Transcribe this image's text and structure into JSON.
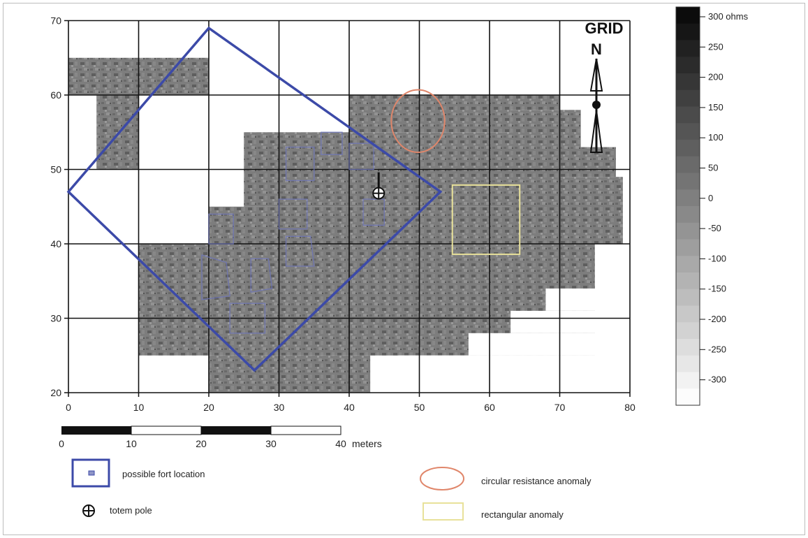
{
  "map": {
    "x_axis": {
      "ticks": [
        0,
        10,
        20,
        30,
        40,
        50,
        60,
        70,
        80
      ],
      "range": [
        0,
        80
      ]
    },
    "y_axis": {
      "ticks": [
        20,
        30,
        40,
        50,
        60,
        70
      ],
      "range": [
        20,
        70
      ]
    },
    "grid": true,
    "survey_blocks_m": [
      [
        0,
        60,
        20,
        65
      ],
      [
        4,
        50,
        10,
        60
      ],
      [
        25,
        45,
        70,
        55
      ],
      [
        40,
        55,
        63,
        60
      ],
      [
        20,
        40,
        70,
        45
      ],
      [
        10,
        25,
        75,
        40
      ],
      [
        20,
        20,
        43,
        25
      ]
    ],
    "fort_polygon_m": [
      [
        20,
        69
      ],
      [
        53,
        47
      ],
      [
        26.5,
        23
      ],
      [
        0,
        47
      ]
    ],
    "inner_structures_m": [
      [
        [
          26,
          38
        ],
        [
          28.5,
          38
        ],
        [
          29,
          34
        ],
        [
          26,
          33.5
        ]
      ],
      [
        [
          19,
          38.5
        ],
        [
          22.5,
          37.5
        ],
        [
          23,
          33
        ],
        [
          19,
          32.5
        ]
      ],
      [
        [
          23,
          32
        ],
        [
          28,
          32
        ],
        [
          28,
          28
        ],
        [
          23,
          28
        ]
      ],
      [
        [
          31,
          41
        ],
        [
          34.5,
          41
        ],
        [
          35,
          37
        ],
        [
          31,
          37
        ]
      ],
      [
        [
          30,
          46
        ],
        [
          34,
          46
        ],
        [
          34,
          42
        ],
        [
          30,
          42
        ]
      ],
      [
        [
          31,
          53
        ],
        [
          35,
          53
        ],
        [
          35,
          48.5
        ],
        [
          31,
          48.5
        ]
      ],
      [
        [
          36,
          55
        ],
        [
          39,
          55
        ],
        [
          39,
          52
        ],
        [
          36,
          52
        ]
      ],
      [
        [
          40,
          53.5
        ],
        [
          43.5,
          53.5
        ],
        [
          43.5,
          50
        ],
        [
          40,
          50
        ]
      ],
      [
        [
          20,
          44
        ],
        [
          23.5,
          44
        ],
        [
          23.5,
          40
        ],
        [
          20,
          40
        ]
      ],
      [
        [
          42,
          46
        ],
        [
          45,
          46
        ],
        [
          45,
          42.5
        ],
        [
          42,
          42.5
        ]
      ]
    ],
    "totem_pole_m": [
      44.2,
      46.8
    ],
    "circular_anomaly_m": {
      "cx": 49.8,
      "cy": 56.5,
      "rx": 3.8,
      "ry": 4.2
    },
    "rectangular_anomaly_m": [
      54.7,
      38.6,
      64.3,
      47.9
    ],
    "north_arrow": {
      "line1": "GRID",
      "line2": "N"
    },
    "colors": {
      "fort_outline": "#3c4aa8",
      "circular_anomaly": "#e0866a",
      "rectangular_anomaly": "#e8e19a",
      "grid_lines": "#111111"
    }
  },
  "colorbar": {
    "labels": [
      "300 ohms",
      "250",
      "200",
      "150",
      "100",
      "50",
      "0",
      "-50",
      "-100",
      "-150",
      "-200",
      "-250",
      "-300"
    ]
  },
  "scale_bar": {
    "tick_labels": [
      "0",
      "10",
      "20",
      "30",
      "40"
    ],
    "unit": "meters"
  },
  "legend": {
    "fort": "possible fort location",
    "totem": "totem pole",
    "circular": "circular resistance anomaly",
    "rectangular": "rectangular anomaly"
  }
}
